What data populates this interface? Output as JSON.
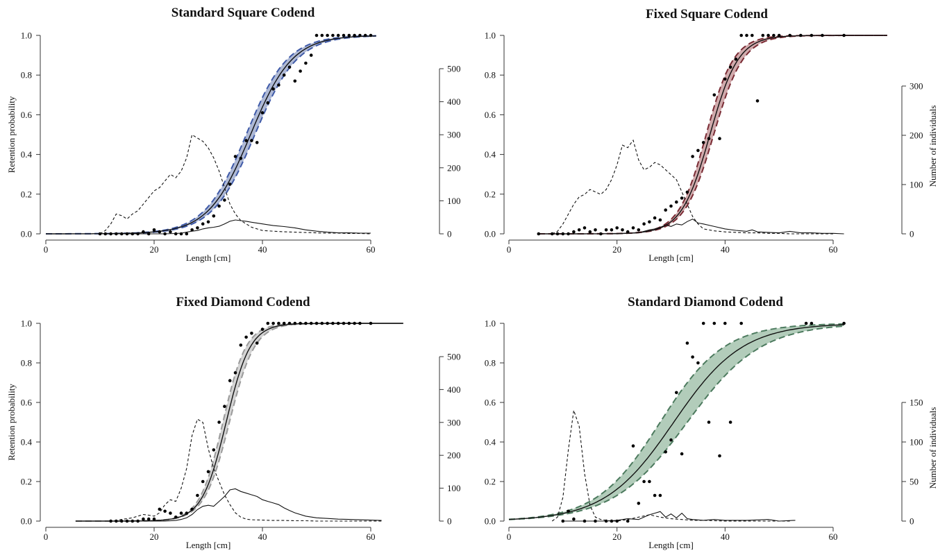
{
  "chart_data": [
    {
      "type": "line",
      "title": "Standard Square Codend",
      "xlabel": "Length [cm]",
      "ylabel": "Retention probability",
      "y2label": "",
      "xlim": [
        0,
        60
      ],
      "ylim": [
        0,
        1
      ],
      "y2lim": [
        0,
        500
      ],
      "xticks": [
        "0",
        "20",
        "40",
        "60"
      ],
      "yticks": [
        "0.0",
        "0.2",
        "0.4",
        "0.6",
        "0.8",
        "1.0"
      ],
      "y2ticks": [
        "0",
        "100",
        "200",
        "300",
        "400",
        "500"
      ],
      "band_color": "#aab5d4",
      "band_edge_color": "#3f5aa8",
      "fit_curve": {
        "l50": 37.8,
        "sr": 8.5,
        "x_range": [
          0,
          61
        ]
      },
      "ci_lower": {
        "l50": 38.6,
        "sr": 8.6
      },
      "ci_upper": {
        "l50": 37.0,
        "sr": 8.4
      },
      "series": [
        {
          "name": "",
          "style": "points",
          "x": [
            10,
            11,
            12,
            13,
            14,
            15,
            16,
            17,
            18,
            19,
            20,
            21,
            22,
            23,
            24,
            25,
            26,
            27,
            28,
            29,
            30,
            31,
            32,
            33,
            34,
            35,
            36,
            37,
            38,
            39,
            40,
            41,
            42,
            43,
            44,
            45,
            46,
            47,
            48,
            49,
            50,
            51,
            52,
            53,
            54,
            55,
            56,
            57,
            58,
            59,
            60
          ],
          "y": [
            0,
            0,
            0,
            0,
            0,
            0,
            0,
            0,
            0.01,
            0,
            0.02,
            0.01,
            0,
            0.01,
            0,
            0,
            0,
            0.02,
            0.03,
            0.05,
            0.06,
            0.09,
            0.14,
            0.17,
            0.25,
            0.39,
            0.38,
            0.47,
            0.47,
            0.46,
            0.61,
            0.66,
            0.73,
            0.75,
            0.8,
            0.84,
            0.77,
            0.82,
            0.86,
            0.9,
            1.0,
            1.0,
            1.0,
            1.0,
            1.0,
            1.0,
            1.0,
            1.0,
            1.0,
            1.0,
            1.0
          ]
        },
        {
          "name": "",
          "style": "dashed",
          "axis": "right",
          "x": [
            10,
            11,
            12,
            13,
            14,
            15,
            16,
            17,
            18,
            19,
            20,
            21,
            22,
            23,
            24,
            25,
            26,
            27,
            28,
            29,
            30,
            31,
            32,
            33,
            34,
            35,
            36,
            37,
            38,
            39,
            40,
            42,
            44,
            46,
            48,
            50,
            52,
            54,
            56,
            58,
            60
          ],
          "y": [
            0,
            10,
            30,
            60,
            55,
            45,
            60,
            70,
            90,
            110,
            130,
            140,
            160,
            180,
            170,
            190,
            230,
            300,
            290,
            280,
            260,
            230,
            190,
            140,
            90,
            60,
            40,
            30,
            20,
            15,
            10,
            8,
            6,
            5,
            4,
            3,
            2,
            2,
            1,
            1,
            0
          ]
        },
        {
          "name": "",
          "style": "solid",
          "axis": "right",
          "x": [
            10,
            15,
            20,
            22,
            24,
            25,
            26,
            27,
            28,
            29,
            30,
            31,
            32,
            33,
            34,
            35,
            36,
            37,
            38,
            40,
            42,
            44,
            46,
            48,
            50,
            52,
            54,
            56,
            58,
            60
          ],
          "y": [
            0,
            0,
            0,
            0,
            1,
            2,
            5,
            8,
            10,
            15,
            18,
            20,
            23,
            30,
            38,
            42,
            40,
            38,
            35,
            30,
            25,
            22,
            18,
            12,
            8,
            5,
            3,
            3,
            2,
            2
          ]
        }
      ]
    },
    {
      "type": "line",
      "title": "Fixed Square Codend",
      "xlabel": "Length [cm]",
      "ylabel": "",
      "y2label": "Number of individuals",
      "xlim": [
        0,
        60
      ],
      "ylim": [
        0,
        1
      ],
      "y2lim": [
        0,
        300
      ],
      "xticks": [
        "0",
        "20",
        "40",
        "60"
      ],
      "yticks": [
        "0.0",
        "0.2",
        "0.4",
        "0.6",
        "0.8",
        "1.0"
      ],
      "y2ticks": [
        "0",
        "100",
        "200",
        "300"
      ],
      "band_color": "#cfa5a8",
      "band_edge_color": "#7a2b34",
      "fit_curve": {
        "l50": 37.2,
        "sr": 5.8,
        "x_range": [
          5.5,
          70
        ]
      },
      "ci_lower": {
        "l50": 37.9,
        "sr": 6.0
      },
      "ci_upper": {
        "l50": 36.5,
        "sr": 5.6
      },
      "series": [
        {
          "name": "",
          "style": "points",
          "x": [
            5.5,
            8,
            9,
            10,
            11,
            12,
            13,
            14,
            15,
            16,
            17,
            18,
            19,
            20,
            21,
            22,
            23,
            24,
            25,
            26,
            27,
            28,
            29,
            30,
            31,
            32,
            33,
            34,
            35,
            36,
            37,
            38,
            39,
            40,
            41,
            42,
            43,
            44,
            45,
            46,
            47,
            48,
            49,
            50,
            52,
            54,
            56,
            58,
            62
          ],
          "y": [
            0,
            0,
            0,
            0,
            0,
            0.01,
            0.02,
            0.03,
            0.01,
            0.02,
            0,
            0.02,
            0.02,
            0.03,
            0.02,
            0.01,
            0.03,
            0.02,
            0.05,
            0.06,
            0.08,
            0.07,
            0.12,
            0.14,
            0.16,
            0.18,
            0.21,
            0.39,
            0.42,
            0.46,
            0.48,
            0.7,
            0.48,
            0.78,
            0.84,
            0.88,
            1.0,
            1.0,
            1.0,
            0.67,
            1.0,
            1.0,
            1.0,
            1.0,
            1.0,
            1.0,
            1.0,
            1.0,
            1.0
          ]
        },
        {
          "name": "",
          "style": "dashed",
          "axis": "right",
          "x": [
            8,
            9,
            10,
            11,
            12,
            13,
            14,
            15,
            16,
            17,
            18,
            19,
            20,
            21,
            22,
            23,
            24,
            25,
            26,
            27,
            28,
            29,
            30,
            31,
            32,
            33,
            34,
            35,
            36,
            38,
            40,
            42,
            44,
            46,
            48,
            50,
            52,
            54,
            56,
            58,
            60
          ],
          "y": [
            0,
            5,
            20,
            40,
            60,
            75,
            80,
            90,
            85,
            80,
            90,
            110,
            140,
            180,
            175,
            190,
            150,
            130,
            135,
            145,
            140,
            130,
            120,
            110,
            85,
            60,
            35,
            20,
            10,
            6,
            4,
            3,
            2,
            2,
            1,
            1,
            0,
            0,
            0,
            0,
            0
          ]
        },
        {
          "name": "",
          "style": "solid",
          "axis": "right",
          "x": [
            8,
            10,
            15,
            20,
            22,
            24,
            25,
            26,
            27,
            28,
            29,
            30,
            31,
            32,
            33,
            34,
            35,
            36,
            38,
            40,
            42,
            44,
            45,
            46,
            48,
            50,
            52,
            54,
            56,
            58,
            60,
            62
          ],
          "y": [
            0,
            0,
            0,
            0,
            1,
            2,
            5,
            8,
            10,
            13,
            18,
            15,
            20,
            18,
            25,
            30,
            22,
            20,
            15,
            10,
            7,
            5,
            8,
            4,
            3,
            2,
            5,
            2,
            2,
            1,
            1,
            0
          ]
        }
      ]
    },
    {
      "type": "line",
      "title": "Fixed Diamond Codend",
      "xlabel": "Length [cm]",
      "ylabel": "Retention probability",
      "y2label": "",
      "xlim": [
        0,
        60
      ],
      "ylim": [
        0,
        1
      ],
      "y2lim": [
        0,
        500
      ],
      "xticks": [
        "0",
        "20",
        "40",
        "60"
      ],
      "yticks": [
        "0.0",
        "0.2",
        "0.4",
        "0.6",
        "0.8",
        "1.0"
      ],
      "y2ticks": [
        "0",
        "100",
        "200",
        "300",
        "400",
        "500"
      ],
      "band_color": "#d2d2d2",
      "band_edge_color": "#9a9a9a",
      "fit_curve": {
        "l50": 33.3,
        "sr": 4.9,
        "x_range": [
          5.5,
          66
        ]
      },
      "ci_lower": {
        "l50": 33.9,
        "sr": 5.1
      },
      "ci_upper": {
        "l50": 32.7,
        "sr": 4.7
      },
      "series": [
        {
          "name": "",
          "style": "points",
          "x": [
            12,
            13,
            14,
            15,
            16,
            17,
            18,
            19,
            20,
            21,
            22,
            23,
            24,
            25,
            26,
            27,
            28,
            29,
            30,
            31,
            32,
            33,
            34,
            35,
            36,
            37,
            38,
            39,
            40,
            41,
            42,
            43,
            44,
            45,
            46,
            47,
            48,
            49,
            50,
            51,
            52,
            53,
            54,
            55,
            56,
            57,
            58,
            60
          ],
          "y": [
            0,
            0,
            0,
            0,
            0,
            0,
            0.01,
            0.01,
            0.01,
            0.06,
            0.05,
            0.04,
            0.02,
            0.04,
            0.04,
            0.06,
            0.13,
            0.2,
            0.25,
            0.36,
            0.5,
            0.58,
            0.71,
            0.75,
            0.89,
            0.93,
            0.95,
            0.9,
            0.97,
            1.0,
            1.0,
            1.0,
            1.0,
            1.0,
            1.0,
            1.0,
            1.0,
            1.0,
            1.0,
            1.0,
            1.0,
            1.0,
            1.0,
            1.0,
            1.0,
            1.0,
            1.0,
            1.0
          ]
        },
        {
          "name": "",
          "style": "dashed",
          "axis": "right",
          "x": [
            10,
            12,
            14,
            16,
            17,
            18,
            19,
            20,
            21,
            22,
            23,
            24,
            25,
            26,
            27,
            28,
            29,
            30,
            31,
            32,
            33,
            34,
            35,
            36,
            37,
            38,
            40,
            42,
            44,
            46,
            48,
            50,
            52,
            54,
            56,
            58,
            60,
            62
          ],
          "y": [
            0,
            0,
            5,
            10,
            15,
            20,
            18,
            15,
            25,
            50,
            65,
            60,
            100,
            160,
            260,
            310,
            300,
            220,
            160,
            120,
            80,
            50,
            25,
            12,
            6,
            4,
            3,
            2,
            2,
            1,
            1,
            0,
            0,
            0,
            0,
            0,
            0,
            0
          ]
        },
        {
          "name": "",
          "style": "solid",
          "axis": "right",
          "x": [
            10,
            15,
            20,
            22,
            24,
            25,
            26,
            27,
            28,
            29,
            30,
            31,
            32,
            33,
            34,
            35,
            36,
            37,
            38,
            39,
            40,
            41,
            42,
            43,
            44,
            45,
            46,
            48,
            50,
            52,
            54,
            56,
            58,
            60,
            62
          ],
          "y": [
            0,
            0,
            0,
            0,
            2,
            5,
            10,
            20,
            35,
            45,
            48,
            45,
            60,
            75,
            95,
            98,
            90,
            85,
            80,
            75,
            65,
            60,
            55,
            50,
            40,
            32,
            25,
            15,
            10,
            8,
            6,
            5,
            4,
            3,
            2
          ]
        }
      ]
    },
    {
      "type": "line",
      "title": "Standard Diamond Codend",
      "xlabel": "Length [cm]",
      "ylabel": "",
      "y2label": "Number of individuals",
      "xlim": [
        0,
        60
      ],
      "ylim": [
        0,
        1
      ],
      "y2lim": [
        0,
        150
      ],
      "xticks": [
        "0",
        "20",
        "40",
        "60"
      ],
      "yticks": [
        "0.0",
        "0.2",
        "0.4",
        "0.6",
        "0.8",
        "1.0"
      ],
      "y2ticks": [
        "0",
        "50",
        "100",
        "150"
      ],
      "band_color": "#aec9b6",
      "band_edge_color": "#4c7a5e",
      "fit_curve": {
        "l50": 30.5,
        "sr": 14.0,
        "x_range": [
          0,
          62
        ]
      },
      "ci_lower": {
        "l50": 33.0,
        "sr": 15.0
      },
      "ci_upper": {
        "l50": 28.0,
        "sr": 13.0
      },
      "series": [
        {
          "name": "",
          "style": "points",
          "x": [
            10,
            11,
            12,
            14,
            16,
            18,
            19,
            20,
            22,
            23,
            24,
            25,
            26,
            27,
            28,
            29,
            30,
            31,
            32,
            33,
            34,
            35,
            36,
            37,
            38,
            39,
            40,
            41,
            43,
            55,
            56,
            62
          ],
          "y": [
            0,
            0.05,
            0.01,
            0,
            0,
            0,
            0,
            0,
            0,
            0.38,
            0.09,
            0.2,
            0.2,
            0.13,
            0.13,
            0.35,
            0.41,
            0.65,
            0.34,
            0.9,
            0.83,
            0.8,
            1.0,
            0.5,
            1.0,
            0.33,
            1.0,
            0.5,
            1.0,
            1.0,
            1.0,
            1.0
          ]
        },
        {
          "name": "",
          "style": "dashed",
          "axis": "right",
          "x": [
            8,
            9,
            10,
            11,
            12,
            13,
            14,
            15,
            16,
            17,
            18,
            19,
            20,
            22,
            24,
            26,
            28,
            30,
            32,
            34,
            36,
            40,
            44,
            48,
            52
          ],
          "y": [
            0,
            5,
            30,
            90,
            140,
            120,
            60,
            20,
            5,
            2,
            1,
            0,
            0,
            2,
            5,
            8,
            5,
            3,
            2,
            1,
            1,
            0,
            0,
            0,
            0
          ]
        },
        {
          "name": "",
          "style": "solid",
          "axis": "right",
          "x": [
            10,
            14,
            18,
            20,
            22,
            24,
            25,
            26,
            27,
            28,
            29,
            30,
            31,
            32,
            33,
            34,
            36,
            38,
            40,
            44,
            48,
            50,
            53
          ],
          "y": [
            0,
            0,
            0,
            1,
            3,
            2,
            5,
            8,
            10,
            12,
            5,
            9,
            4,
            10,
            3,
            2,
            1,
            2,
            1,
            1,
            2,
            0,
            1
          ]
        }
      ]
    }
  ]
}
